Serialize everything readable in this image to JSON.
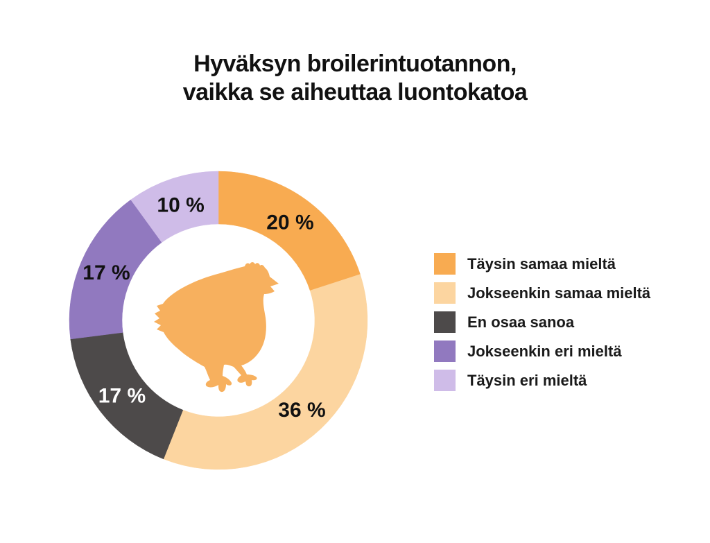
{
  "title": {
    "line1": "Hyväksyn broilerintuotannon,",
    "line2": "vaikka se aiheuttaa luontokatoa"
  },
  "colors": {
    "background": "#ffffff",
    "title_text": "#111111",
    "legend_text": "#1a1a1a"
  },
  "chart_data": {
    "type": "pie",
    "subtype": "donut",
    "title": "Hyväksyn broilerintuotannon, vaikka se aiheuttaa luontokatoa",
    "direction": "clockwise",
    "start_angle_deg": 0,
    "legend_position": "right",
    "center_icon": "chicken-silhouette",
    "center_icon_color": "#F7B05E",
    "geometry": {
      "outer_radius": 215,
      "inner_radius": 139,
      "label_radius": 176
    },
    "categories": [
      "Täysin samaa mieltä",
      "Jokseenkin samaa mieltä",
      "En osaa sanoa",
      "Jokseenkin eri mieltä",
      "Täysin eri mieltä"
    ],
    "values": [
      20,
      36,
      17,
      17,
      10
    ],
    "slices": [
      {
        "label": "Täysin samaa mieltä",
        "value": 20,
        "display": "20 %",
        "color": "#F8AB51",
        "label_color": "#111111"
      },
      {
        "label": "Jokseenkin samaa mieltä",
        "value": 36,
        "display": "36 %",
        "color": "#FCD5A0",
        "label_color": "#111111"
      },
      {
        "label": "En osaa sanoa",
        "value": 17,
        "display": "17 %",
        "color": "#4D4A4A",
        "label_color": "#ffffff"
      },
      {
        "label": "Jokseenkin eri mieltä",
        "value": 17,
        "display": "17 %",
        "color": "#9179BF",
        "label_color": "#111111"
      },
      {
        "label": "Täysin eri mieltä",
        "value": 10,
        "display": "10 %",
        "color": "#CFBCE8",
        "label_color": "#111111"
      }
    ]
  }
}
